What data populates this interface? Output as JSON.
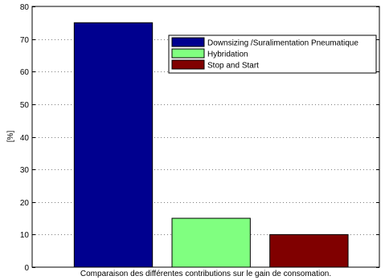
{
  "chart_data": {
    "type": "bar",
    "title": "",
    "xlabel": "Comparaison des différentes contributions sur le gain de consomation.",
    "ylabel": "[%]",
    "ylim": [
      0,
      80
    ],
    "yticks": [
      0,
      10,
      20,
      30,
      40,
      50,
      60,
      70,
      80
    ],
    "grid": true,
    "legend_position": "top-right",
    "series": [
      {
        "name": "Downsizing /Suralimentation Pneumatique",
        "value": 75,
        "color": "#00008f"
      },
      {
        "name": "Hybridation",
        "value": 15,
        "color": "#80ff80"
      },
      {
        "name": "Stop and Start",
        "value": 10,
        "color": "#800000"
      }
    ]
  }
}
